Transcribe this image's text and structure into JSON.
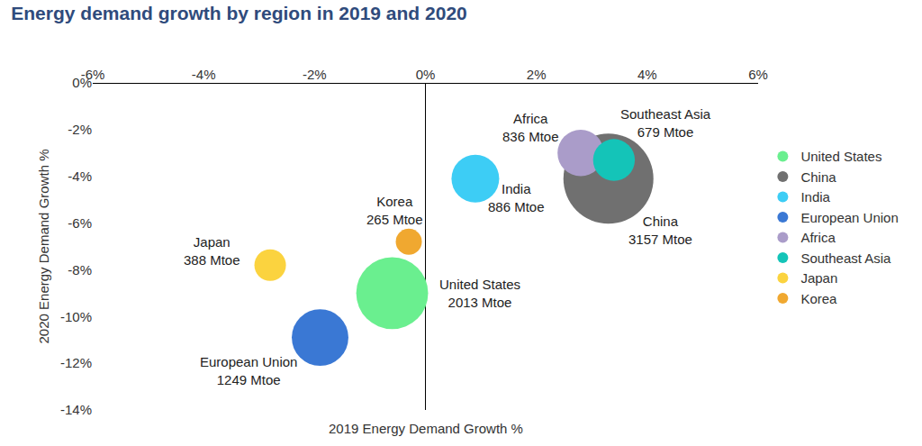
{
  "chart_data": {
    "type": "scatter",
    "marker": "bubble",
    "title": "Energy demand growth by region in 2019 and 2020",
    "xlabel": "2019 Energy Demand Growth %",
    "ylabel": "2020 Energy Demand Growth %",
    "xlim": [
      -6,
      6
    ],
    "xticks": [
      {
        "value": -6,
        "label": "-6%"
      },
      {
        "value": -4,
        "label": "-4%"
      },
      {
        "value": -2,
        "label": "-2%"
      },
      {
        "value": 0,
        "label": "0%"
      },
      {
        "value": 2,
        "label": "2%"
      },
      {
        "value": 4,
        "label": "4%"
      },
      {
        "value": 6,
        "label": "6%"
      }
    ],
    "ylim": [
      -14,
      0
    ],
    "yticks": [
      {
        "value": 0,
        "label": "0%"
      },
      {
        "value": -2,
        "label": "-2%"
      },
      {
        "value": -4,
        "label": "-4%"
      },
      {
        "value": -6,
        "label": "-6%"
      },
      {
        "value": -8,
        "label": "-8%"
      },
      {
        "value": -10,
        "label": "-10%"
      },
      {
        "value": -12,
        "label": "-12%"
      },
      {
        "value": -14,
        "label": "-14%"
      }
    ],
    "grid": false,
    "legend": "right",
    "data_labels": true,
    "series": [
      {
        "name": "United States",
        "color": "#6aef8f",
        "x": [
          -0.6
        ],
        "values": [
          -9.0
        ],
        "sizes": [
          2013
        ],
        "size_labels": [
          "2013 Mtoe"
        ]
      },
      {
        "name": "China",
        "color": "#707070",
        "x": [
          3.3
        ],
        "values": [
          -4.1
        ],
        "sizes": [
          3157
        ],
        "size_labels": [
          "3157 Mtoe"
        ]
      },
      {
        "name": "India",
        "color": "#3dcdf5",
        "x": [
          0.9
        ],
        "values": [
          -4.1
        ],
        "sizes": [
          886
        ],
        "size_labels": [
          "886 Mtoe"
        ]
      },
      {
        "name": "European Union",
        "color": "#3a78d4",
        "x": [
          -1.9
        ],
        "values": [
          -10.9
        ],
        "sizes": [
          1249
        ],
        "size_labels": [
          "1249 Mtoe"
        ]
      },
      {
        "name": "Africa",
        "color": "#aa9cc9",
        "x": [
          2.8
        ],
        "values": [
          -3.0
        ],
        "sizes": [
          836
        ],
        "size_labels": [
          "836 Mtoe"
        ]
      },
      {
        "name": "Southeast Asia",
        "color": "#14c4b8",
        "x": [
          3.4
        ],
        "values": [
          -3.3
        ],
        "sizes": [
          679
        ],
        "size_labels": [
          "679 Mtoe"
        ]
      },
      {
        "name": "Japan",
        "color": "#fbd33f",
        "x": [
          -2.8
        ],
        "values": [
          -7.8
        ],
        "sizes": [
          388
        ],
        "size_labels": [
          "388 Mtoe"
        ]
      },
      {
        "name": "Korea",
        "color": "#f0a830",
        "x": [
          -0.3
        ],
        "values": [
          -6.8
        ],
        "sizes": [
          265
        ],
        "size_labels": [
          "265 Mtoe"
        ]
      }
    ]
  }
}
